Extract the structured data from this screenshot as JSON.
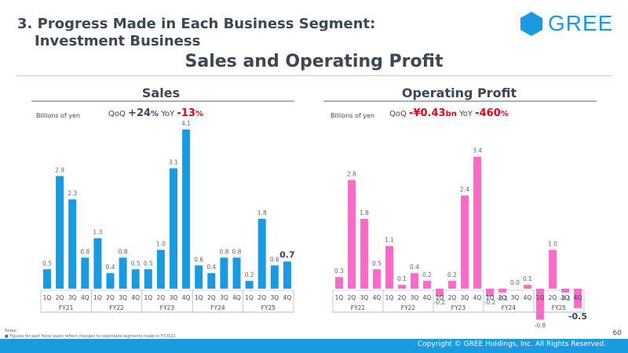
{
  "header": {
    "title_line1": "3. Progress Made in Each Business Segment:",
    "title_line2": "Investment Business",
    "logo_text": "GREE",
    "main_heading": "Sales and Operating Profit"
  },
  "colors": {
    "accent": "#1a9ae0",
    "sales_bar": "#1a9ae0",
    "profit_bar": "#ff69c8",
    "text": "#3b4754",
    "negative": "#e0001a"
  },
  "chart_data": [
    {
      "type": "bar",
      "title": "Sales",
      "unit_label": "Billions of yen",
      "qoq_label": "QoQ",
      "qoq_value": "+24",
      "qoq_unit": "%",
      "yoy_label": "YoY",
      "yoy_value": "-13",
      "yoy_unit": "%",
      "quarters": [
        "1Q",
        "2Q",
        "3Q",
        "4Q"
      ],
      "fiscal_years": [
        "FY21",
        "FY22",
        "FY23",
        "FY24",
        "FY25"
      ],
      "values": [
        0.5,
        2.9,
        2.3,
        0.8,
        1.3,
        0.4,
        0.8,
        0.5,
        0.5,
        1.0,
        3.1,
        4.1,
        0.6,
        0.4,
        0.8,
        0.8,
        0.2,
        1.8,
        0.6,
        0.7
      ],
      "labels": [
        "0.5",
        "2.9",
        "2.3",
        "0.8",
        "1.3",
        "0.4",
        "0.8",
        "0.5",
        "0.5",
        "1.0",
        "3.1",
        "4.1",
        "0.6",
        "0.4",
        "0.8",
        "0.8",
        "0.2",
        "1.8",
        "0.6",
        "0.7"
      ],
      "ylim": [
        0,
        4.1
      ]
    },
    {
      "type": "bar",
      "title": "Operating Profit",
      "unit_label": "Billions of yen",
      "qoq_label": "QoQ",
      "qoq_value": "-¥0.43",
      "qoq_unit": "bn",
      "yoy_label": "YoY",
      "yoy_value": "-460",
      "yoy_unit": "%",
      "quarters": [
        "1Q",
        "2Q",
        "3Q",
        "4Q"
      ],
      "fiscal_years": [
        "FY21",
        "FY22",
        "FY23",
        "FY24",
        "FY25"
      ],
      "values": [
        0.3,
        2.8,
        1.8,
        0.5,
        1.1,
        0.1,
        0.4,
        0.2,
        -0.2,
        0.2,
        2.4,
        3.4,
        -0.2,
        -0.1,
        0.0,
        0.1,
        -0.8,
        1.0,
        -0.1,
        -0.5
      ],
      "labels": [
        "0.3",
        "2.8",
        "1.8",
        "0.5",
        "1.1",
        "0.1",
        "0.4",
        "0.2",
        "-0.2",
        "0.2",
        "2.4",
        "3.4",
        "-0.2",
        "-0.1",
        "0.0",
        "0.1",
        "-0.8",
        "1.0",
        "-0.1",
        "-0.5"
      ],
      "ylim": [
        -0.8,
        3.4
      ]
    }
  ],
  "footer": {
    "notes_title": "Notes:",
    "note_1": "Figures for past fiscal years reflect changes to reportable segments made in FY2022",
    "page_number": "60",
    "copyright": "Copyright © GREE Holdings, Inc. All Rights Reserved."
  }
}
